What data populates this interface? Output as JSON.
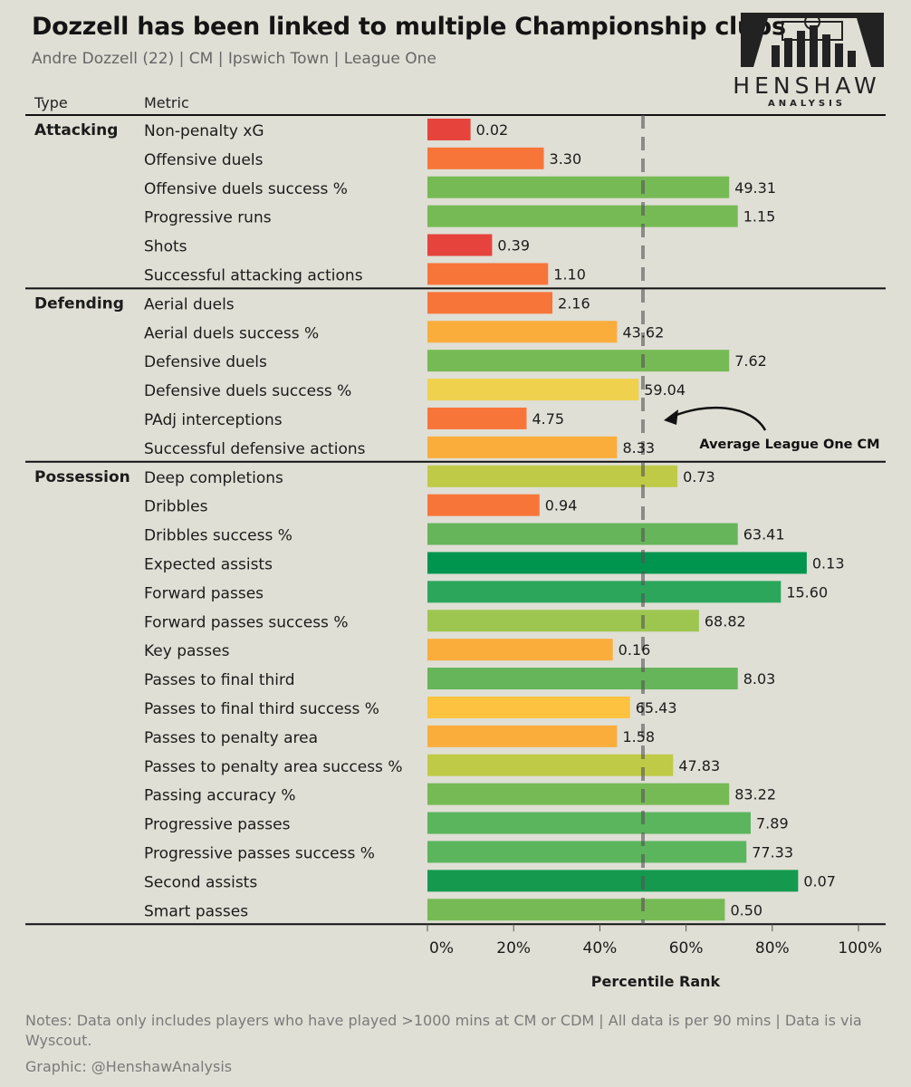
{
  "header": {
    "title": "Dozzell has been linked to multiple Championship clubs",
    "subtitle": "Andre Dozzell (22) | CM | Ipswich Town | League One",
    "col_type": "Type",
    "col_metric": "Metric"
  },
  "logo": {
    "wordmark": "HENSHAW",
    "subword": "ANALYSIS",
    "icon": "stadium-bars-logo"
  },
  "annotation": {
    "text": "Average League One CM",
    "icon": "curved-arrow-icon"
  },
  "footer": {
    "notes": "Notes: Data only includes players who have played >1000 mins at CM or CDM | All data is per 90 mins | Data is via Wyscout.",
    "credit": "Graphic: @HenshawAnalysis"
  },
  "chart_data": {
    "type": "bar",
    "orientation": "horizontal",
    "xlabel": "Percentile Rank",
    "xlim": [
      0,
      100
    ],
    "xticks": [
      "0%",
      "20%",
      "40%",
      "60%",
      "80%",
      "100%"
    ],
    "reference_line": {
      "value": 50,
      "style": "dashed"
    },
    "groups": [
      {
        "name": "Attacking",
        "rows": [
          {
            "metric": "Non-penalty xG",
            "percentile": 10,
            "label": "0.02",
            "color": "#e5433c"
          },
          {
            "metric": "Offensive duels",
            "percentile": 27,
            "label": "3.30",
            "color": "#f8753a"
          },
          {
            "metric": "Offensive duels success %",
            "percentile": 70,
            "label": "49.31",
            "color": "#76ba55"
          },
          {
            "metric": "Progressive runs",
            "percentile": 72,
            "label": "1.15",
            "color": "#76ba55"
          },
          {
            "metric": "Shots",
            "percentile": 15,
            "label": "0.39",
            "color": "#e5433c"
          },
          {
            "metric": "Successful attacking actions",
            "percentile": 28,
            "label": "1.10",
            "color": "#f8753a"
          }
        ]
      },
      {
        "name": "Defending",
        "rows": [
          {
            "metric": "Aerial duels",
            "percentile": 29,
            "label": "2.16",
            "color": "#f8753a"
          },
          {
            "metric": "Aerial duels success %",
            "percentile": 44,
            "label": "43.62",
            "color": "#fbad3c"
          },
          {
            "metric": "Defensive duels",
            "percentile": 70,
            "label": "7.62",
            "color": "#76ba55"
          },
          {
            "metric": "Defensive duels success %",
            "percentile": 49,
            "label": "59.04",
            "color": "#efd14e"
          },
          {
            "metric": "PAdj interceptions",
            "percentile": 23,
            "label": "4.75",
            "color": "#f8753a"
          },
          {
            "metric": "Successful defensive actions",
            "percentile": 44,
            "label": "8.33",
            "color": "#fbad3c"
          }
        ]
      },
      {
        "name": "Possession",
        "rows": [
          {
            "metric": "Deep completions",
            "percentile": 58,
            "label": "0.73",
            "color": "#bfca46"
          },
          {
            "metric": "Dribbles",
            "percentile": 26,
            "label": "0.94",
            "color": "#f8753a"
          },
          {
            "metric": "Dribbles success %",
            "percentile": 72,
            "label": "63.41",
            "color": "#66b55a"
          },
          {
            "metric": "Expected assists",
            "percentile": 88,
            "label": "0.13",
            "color": "#00954f"
          },
          {
            "metric": "Forward passes",
            "percentile": 82,
            "label": "15.60",
            "color": "#2ba65b"
          },
          {
            "metric": "Forward passes success %",
            "percentile": 63,
            "label": "68.82",
            "color": "#9dc650"
          },
          {
            "metric": "Key passes",
            "percentile": 43,
            "label": "0.16",
            "color": "#fbad3c"
          },
          {
            "metric": "Passes to final third",
            "percentile": 72,
            "label": "8.03",
            "color": "#66b55a"
          },
          {
            "metric": "Passes to final third success %",
            "percentile": 47,
            "label": "65.43",
            "color": "#fdc23f"
          },
          {
            "metric": "Passes to penalty area",
            "percentile": 44,
            "label": "1.58",
            "color": "#fbad3c"
          },
          {
            "metric": "Passes to penalty area success %",
            "percentile": 57,
            "label": "47.83",
            "color": "#bfca46"
          },
          {
            "metric": "Passing accuracy %",
            "percentile": 70,
            "label": "83.22",
            "color": "#76ba55"
          },
          {
            "metric": "Progressive passes",
            "percentile": 75,
            "label": "7.89",
            "color": "#5ab55c"
          },
          {
            "metric": "Progressive passes success %",
            "percentile": 74,
            "label": "77.33",
            "color": "#5ab55c"
          },
          {
            "metric": "Second assists",
            "percentile": 86,
            "label": "0.07",
            "color": "#15994f"
          },
          {
            "metric": "Smart passes",
            "percentile": 69,
            "label": "0.50",
            "color": "#76ba55"
          }
        ]
      }
    ]
  }
}
